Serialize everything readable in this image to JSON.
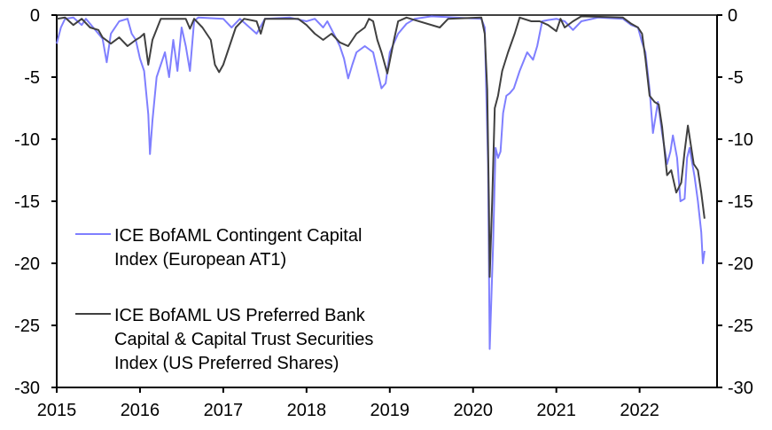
{
  "chart_data": {
    "type": "line",
    "title": "",
    "xlabel": "",
    "ylabel": "",
    "xlim": [
      2015,
      2022.93
    ],
    "ylim": [
      -30,
      0
    ],
    "x_ticks": [
      "2015",
      "2016",
      "2017",
      "2018",
      "2019",
      "2020",
      "2021",
      "2022"
    ],
    "y_ticks_left": [
      "0",
      "-5",
      "-10",
      "-15",
      "-20",
      "-25",
      "-30"
    ],
    "y_ticks_right": [
      "0",
      "-5",
      "-10",
      "-15",
      "-20",
      "-25",
      "-30"
    ],
    "grid": false,
    "legend_placement": "bottom-left",
    "series": [
      {
        "name": "ICE BofAML Contingent Capital Index (European AT1)",
        "legend_lines": [
          "ICE BofAML Contingent Capital",
          "Index (European AT1)"
        ],
        "color": "#7f7fff",
        "points": [
          [
            2015.0,
            -2.3
          ],
          [
            2015.05,
            -1.0
          ],
          [
            2015.1,
            -0.3
          ],
          [
            2015.2,
            -0.2
          ],
          [
            2015.3,
            -0.8
          ],
          [
            2015.35,
            -0.3
          ],
          [
            2015.45,
            -1.1
          ],
          [
            2015.55,
            -1.9
          ],
          [
            2015.6,
            -3.8
          ],
          [
            2015.65,
            -1.5
          ],
          [
            2015.75,
            -0.5
          ],
          [
            2015.85,
            -0.3
          ],
          [
            2015.9,
            -1.5
          ],
          [
            2015.95,
            -2.0
          ],
          [
            2016.0,
            -3.5
          ],
          [
            2016.05,
            -4.5
          ],
          [
            2016.1,
            -8.0
          ],
          [
            2016.12,
            -11.2
          ],
          [
            2016.15,
            -8.5
          ],
          [
            2016.2,
            -5.0
          ],
          [
            2016.3,
            -3.0
          ],
          [
            2016.35,
            -5.0
          ],
          [
            2016.4,
            -2.0
          ],
          [
            2016.45,
            -4.5
          ],
          [
            2016.5,
            -1.0
          ],
          [
            2016.55,
            -2.5
          ],
          [
            2016.6,
            -4.5
          ],
          [
            2016.65,
            -0.5
          ],
          [
            2016.7,
            -0.2
          ],
          [
            2017.0,
            -0.3
          ],
          [
            2017.1,
            -1.0
          ],
          [
            2017.2,
            -0.3
          ],
          [
            2017.4,
            -1.5
          ],
          [
            2017.5,
            -0.3
          ],
          [
            2017.8,
            -0.2
          ],
          [
            2018.0,
            -0.5
          ],
          [
            2018.1,
            -0.3
          ],
          [
            2018.2,
            -1.0
          ],
          [
            2018.25,
            -0.5
          ],
          [
            2018.35,
            -1.8
          ],
          [
            2018.4,
            -2.5
          ],
          [
            2018.45,
            -3.5
          ],
          [
            2018.5,
            -5.1
          ],
          [
            2018.55,
            -4.0
          ],
          [
            2018.6,
            -3.0
          ],
          [
            2018.7,
            -2.5
          ],
          [
            2018.8,
            -3.0
          ],
          [
            2018.9,
            -5.9
          ],
          [
            2018.95,
            -5.5
          ],
          [
            2019.0,
            -3.0
          ],
          [
            2019.1,
            -1.5
          ],
          [
            2019.2,
            -0.7
          ],
          [
            2019.3,
            -0.3
          ],
          [
            2019.5,
            -0.1
          ],
          [
            2020.1,
            -0.3
          ],
          [
            2020.14,
            -1.0
          ],
          [
            2020.18,
            -12.0
          ],
          [
            2020.2,
            -26.9
          ],
          [
            2020.24,
            -18.6
          ],
          [
            2020.27,
            -10.7
          ],
          [
            2020.3,
            -11.5
          ],
          [
            2020.33,
            -11.0
          ],
          [
            2020.36,
            -7.9
          ],
          [
            2020.4,
            -6.5
          ],
          [
            2020.44,
            -6.3
          ],
          [
            2020.49,
            -5.9
          ],
          [
            2020.56,
            -4.5
          ],
          [
            2020.65,
            -3.0
          ],
          [
            2020.72,
            -3.6
          ],
          [
            2020.77,
            -2.5
          ],
          [
            2020.83,
            -0.5
          ],
          [
            2020.9,
            -0.4
          ],
          [
            2021.0,
            -0.3
          ],
          [
            2021.1,
            -0.5
          ],
          [
            2021.2,
            -1.2
          ],
          [
            2021.3,
            -0.5
          ],
          [
            2021.5,
            -0.2
          ],
          [
            2021.8,
            -0.3
          ],
          [
            2021.9,
            -0.8
          ],
          [
            2021.98,
            -1.0
          ],
          [
            2022.03,
            -2.2
          ],
          [
            2022.07,
            -3.0
          ],
          [
            2022.12,
            -6.0
          ],
          [
            2022.16,
            -9.5
          ],
          [
            2022.22,
            -7.0
          ],
          [
            2022.27,
            -9.5
          ],
          [
            2022.33,
            -12.0
          ],
          [
            2022.37,
            -11.0
          ],
          [
            2022.4,
            -9.7
          ],
          [
            2022.45,
            -11.5
          ],
          [
            2022.49,
            -15.0
          ],
          [
            2022.54,
            -14.8
          ],
          [
            2022.57,
            -11.5
          ],
          [
            2022.6,
            -10.7
          ],
          [
            2022.66,
            -13.0
          ],
          [
            2022.7,
            -15.0
          ],
          [
            2022.74,
            -17.5
          ],
          [
            2022.76,
            -20.0
          ],
          [
            2022.78,
            -19.0
          ]
        ]
      },
      {
        "name": "ICE BofAML US Preferred Bank Capital & Capital Trust Securities Index (US Preferred Shares)",
        "legend_lines": [
          "ICE BofAML US Preferred Bank",
          "Capital & Capital Trust Securities",
          "Index (US Preferred Shares)"
        ],
        "color": "#404040",
        "points": [
          [
            2015.0,
            -0.3
          ],
          [
            2015.1,
            -0.2
          ],
          [
            2015.2,
            -0.8
          ],
          [
            2015.3,
            -0.3
          ],
          [
            2015.4,
            -1.0
          ],
          [
            2015.5,
            -1.2
          ],
          [
            2015.55,
            -1.8
          ],
          [
            2015.65,
            -2.3
          ],
          [
            2015.75,
            -1.8
          ],
          [
            2015.85,
            -2.5
          ],
          [
            2015.95,
            -2.0
          ],
          [
            2016.0,
            -1.8
          ],
          [
            2016.05,
            -1.5
          ],
          [
            2016.1,
            -4.0
          ],
          [
            2016.15,
            -2.0
          ],
          [
            2016.25,
            -0.3
          ],
          [
            2016.55,
            -0.3
          ],
          [
            2016.6,
            -1.1
          ],
          [
            2016.65,
            -0.3
          ],
          [
            2016.75,
            -1.0
          ],
          [
            2016.85,
            -2.0
          ],
          [
            2016.9,
            -4.0
          ],
          [
            2016.95,
            -4.6
          ],
          [
            2017.0,
            -4.0
          ],
          [
            2017.05,
            -3.0
          ],
          [
            2017.1,
            -2.0
          ],
          [
            2017.15,
            -1.0
          ],
          [
            2017.25,
            -0.3
          ],
          [
            2017.4,
            -0.5
          ],
          [
            2017.45,
            -1.5
          ],
          [
            2017.5,
            -0.3
          ],
          [
            2017.9,
            -0.3
          ],
          [
            2018.0,
            -0.8
          ],
          [
            2018.1,
            -1.5
          ],
          [
            2018.2,
            -2.0
          ],
          [
            2018.3,
            -1.5
          ],
          [
            2018.4,
            -2.2
          ],
          [
            2018.5,
            -2.5
          ],
          [
            2018.6,
            -1.5
          ],
          [
            2018.7,
            -1.0
          ],
          [
            2018.75,
            -0.3
          ],
          [
            2018.8,
            -0.5
          ],
          [
            2018.85,
            -2.0
          ],
          [
            2018.9,
            -3.0
          ],
          [
            2018.97,
            -4.7
          ],
          [
            2019.05,
            -2.0
          ],
          [
            2019.1,
            -0.5
          ],
          [
            2019.2,
            -0.2
          ],
          [
            2019.6,
            -1.0
          ],
          [
            2019.7,
            -0.3
          ],
          [
            2020.1,
            -0.2
          ],
          [
            2020.14,
            -1.5
          ],
          [
            2020.17,
            -6.0
          ],
          [
            2020.19,
            -15.0
          ],
          [
            2020.2,
            -21.1
          ],
          [
            2020.23,
            -15.0
          ],
          [
            2020.26,
            -7.5
          ],
          [
            2020.3,
            -6.5
          ],
          [
            2020.35,
            -4.5
          ],
          [
            2020.42,
            -3.0
          ],
          [
            2020.5,
            -1.5
          ],
          [
            2020.56,
            -0.2
          ],
          [
            2020.7,
            -0.5
          ],
          [
            2020.8,
            -0.5
          ],
          [
            2020.9,
            -0.8
          ],
          [
            2021.0,
            -1.3
          ],
          [
            2021.05,
            -0.3
          ],
          [
            2021.1,
            -1.0
          ],
          [
            2021.2,
            -0.5
          ],
          [
            2021.3,
            -0.1
          ],
          [
            2021.8,
            -0.2
          ],
          [
            2021.9,
            -0.7
          ],
          [
            2021.98,
            -1.0
          ],
          [
            2022.03,
            -1.5
          ],
          [
            2022.07,
            -3.5
          ],
          [
            2022.12,
            -6.5
          ],
          [
            2022.18,
            -7.0
          ],
          [
            2022.23,
            -7.2
          ],
          [
            2022.27,
            -9.0
          ],
          [
            2022.33,
            -12.9
          ],
          [
            2022.38,
            -12.5
          ],
          [
            2022.44,
            -14.3
          ],
          [
            2022.5,
            -13.5
          ],
          [
            2022.54,
            -11.0
          ],
          [
            2022.58,
            -8.9
          ],
          [
            2022.65,
            -12.0
          ],
          [
            2022.7,
            -12.5
          ],
          [
            2022.74,
            -14.3
          ],
          [
            2022.78,
            -16.4
          ]
        ]
      }
    ]
  }
}
